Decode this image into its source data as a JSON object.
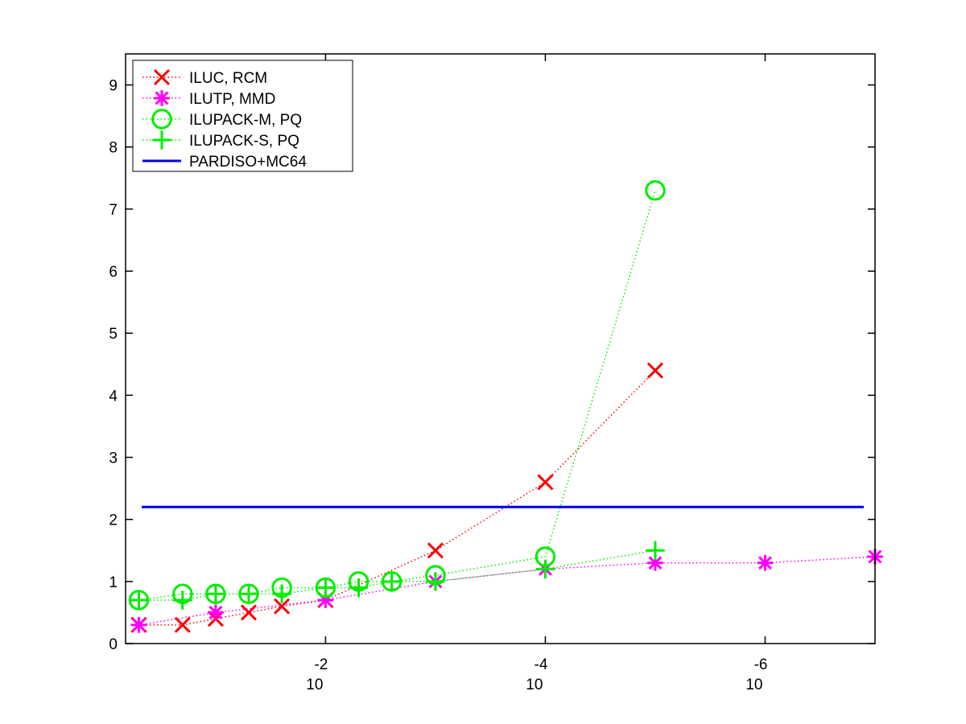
{
  "chart_data": {
    "type": "line",
    "title": "",
    "xlabel": "",
    "ylabel": "",
    "x_scale": "log-reversed",
    "xlim": [
      0.66,
      1e-07
    ],
    "ylim": [
      0,
      9.5
    ],
    "x_ticks": [
      {
        "value": 0.01,
        "base": "10",
        "exponent": "-2"
      },
      {
        "value": 0.0001,
        "base": "10",
        "exponent": "-4"
      },
      {
        "value": 1e-06,
        "base": "10",
        "exponent": "-6"
      }
    ],
    "y_ticks": [
      "0",
      "1",
      "2",
      "3",
      "4",
      "5",
      "6",
      "7",
      "8",
      "9"
    ],
    "grid": false,
    "legend_position": "top-left",
    "series": [
      {
        "name": "ILUC, RCM",
        "color": "#ff0000",
        "marker": "x",
        "line_style": "dotted",
        "points": [
          [
            0.5,
            0.3
          ],
          [
            0.2,
            0.3
          ],
          [
            0.1,
            0.4
          ],
          [
            0.05,
            0.5
          ],
          [
            0.025,
            0.6
          ],
          [
            0.01,
            0.7
          ],
          [
            0.001,
            1.5
          ],
          [
            0.0001,
            2.6
          ],
          [
            1e-05,
            4.4
          ]
        ]
      },
      {
        "name": "ILUTP, MMD",
        "color": "#ff00ff",
        "marker": "asterisk",
        "line_style": "dotted",
        "points": [
          [
            0.5,
            0.3
          ],
          [
            0.1,
            0.5
          ],
          [
            0.01,
            0.7
          ],
          [
            0.001,
            1.0
          ],
          [
            0.0001,
            1.2
          ],
          [
            1e-05,
            1.3
          ],
          [
            1e-06,
            1.3
          ],
          [
            1e-07,
            1.4
          ]
        ]
      },
      {
        "name": "ILUPACK-M, PQ",
        "color": "#00ee00",
        "marker": "circle",
        "line_style": "dotted",
        "points": [
          [
            0.5,
            0.7
          ],
          [
            0.2,
            0.8
          ],
          [
            0.1,
            0.8
          ],
          [
            0.05,
            0.8
          ],
          [
            0.025,
            0.9
          ],
          [
            0.01,
            0.9
          ],
          [
            0.005,
            1.0
          ],
          [
            0.0025,
            1.0
          ],
          [
            0.001,
            1.1
          ],
          [
            0.0001,
            1.4
          ],
          [
            1e-05,
            7.3
          ]
        ]
      },
      {
        "name": "ILUPACK-S, PQ",
        "color": "#00ee00",
        "marker": "plus",
        "line_style": "dotted",
        "points": [
          [
            0.5,
            0.7
          ],
          [
            0.2,
            0.7
          ],
          [
            0.1,
            0.8
          ],
          [
            0.05,
            0.8
          ],
          [
            0.025,
            0.8
          ],
          [
            0.01,
            0.9
          ],
          [
            0.005,
            0.9
          ],
          [
            0.0025,
            1.0
          ],
          [
            0.001,
            1.0
          ],
          [
            0.0001,
            1.2
          ],
          [
            1e-05,
            1.5
          ]
        ]
      },
      {
        "name": "PARDISO+MC64",
        "color": "#0000ee",
        "marker": "none",
        "line_style": "solid",
        "constant_y": 2.2
      }
    ]
  }
}
